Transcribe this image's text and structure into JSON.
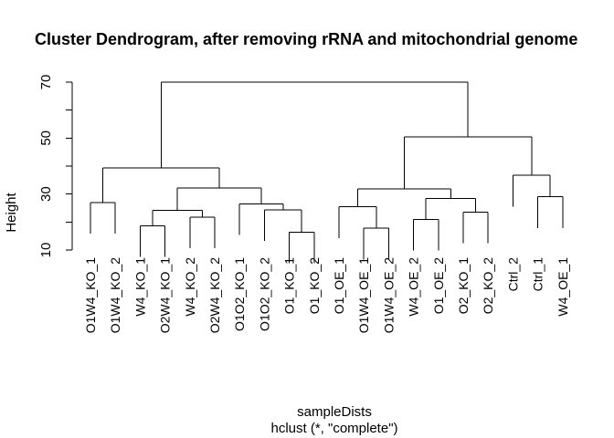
{
  "chart_data": {
    "type": "dendrogram",
    "title": "Cluster Dendrogram, after removing rRNA and mitochondrial genome",
    "xlabel": "sampleDists",
    "sublabel": "hclust (*, \"complete\")",
    "ylabel": "Height",
    "yticks": [
      10,
      30,
      50,
      70
    ],
    "ylim": [
      10,
      72
    ],
    "grid": false,
    "leaves": [
      "O1W4_KO_1",
      "O1W4_KO_2",
      "W4_KO_1",
      "O2W4_KO_1",
      "W4_KO_2",
      "O2W4_KO_2",
      "O1O2_KO_1",
      "O1O2_KO_2",
      "O1_KO_1",
      "O1_KO_2",
      "O1_OE_1",
      "O1W4_OE_1",
      "O1W4_OE_2",
      "W4_OE_2",
      "O1_OE_2",
      "O2_KO_1",
      "O2_KO_2",
      "Ctrl_2",
      "Ctrl_1",
      "W4_OE_1"
    ],
    "merges": [
      {
        "left": 0,
        "right": 1,
        "height": 27.0
      },
      {
        "left": 2,
        "right": 3,
        "height": 18.7
      },
      {
        "left": 4,
        "right": 5,
        "height": 21.8
      },
      {
        "left": "n1",
        "right": "n2",
        "height": 24.2
      },
      {
        "left": 8,
        "right": 9,
        "height": 16.4
      },
      {
        "left": 7,
        "right": "n4",
        "height": 24.4
      },
      {
        "left": 6,
        "right": "n5",
        "height": 26.5
      },
      {
        "left": "n3",
        "right": "n6",
        "height": 32.2
      },
      {
        "left": "n0",
        "right": "n7",
        "height": 39.4
      },
      {
        "left": 11,
        "right": 12,
        "height": 17.8
      },
      {
        "left": 10,
        "right": "n9",
        "height": 25.5
      },
      {
        "left": 13,
        "right": 14,
        "height": 21.0
      },
      {
        "left": 15,
        "right": 16,
        "height": 23.6
      },
      {
        "left": "n11",
        "right": "n12",
        "height": 28.5
      },
      {
        "left": "n10",
        "right": "n13",
        "height": 31.8
      },
      {
        "left": 18,
        "right": 19,
        "height": 29.0
      },
      {
        "left": 17,
        "right": "n15",
        "height": 36.7
      },
      {
        "left": "n14",
        "right": "n16",
        "height": 50.5
      },
      {
        "left": "n8",
        "right": "n17",
        "height": 70.0
      }
    ]
  }
}
